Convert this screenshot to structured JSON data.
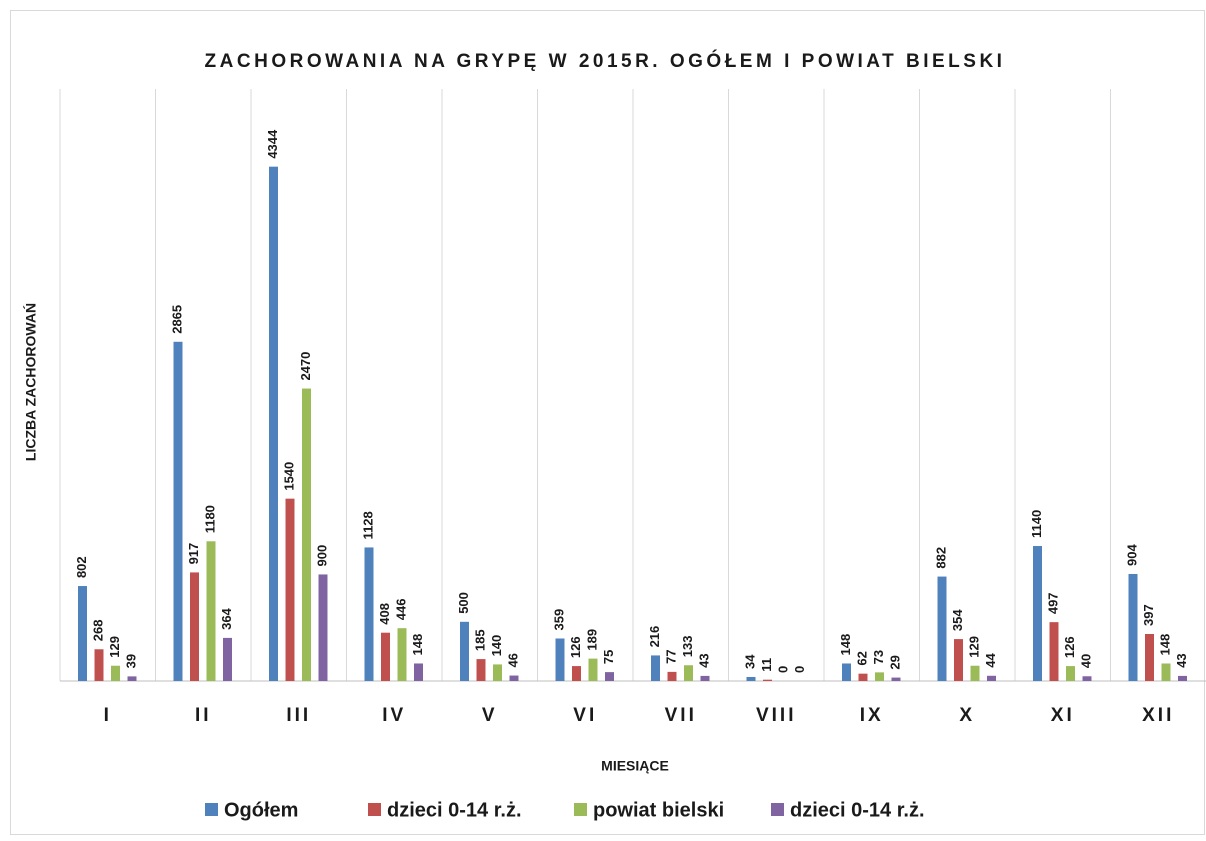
{
  "chart_data": {
    "type": "bar",
    "title": "ZACHOROWANIA NA GRYPĘ W 2015R. OGÓŁEM I POWIAT BIELSKI",
    "x_label": "MIESIĄCE",
    "y_label": "LICZBA ZACHOROWAŃ",
    "categories": [
      "I",
      "II",
      "III",
      "IV",
      "V",
      "VI",
      "VII",
      "VIII",
      "IX",
      "X",
      "XI",
      "XII"
    ],
    "series": [
      {
        "name": "Ogółem",
        "color": "#4f81bd",
        "values": [
          802,
          2865,
          4344,
          1128,
          500,
          359,
          216,
          34,
          148,
          882,
          1140,
          904
        ]
      },
      {
        "name": "dzieci 0-14 r.ż.",
        "color": "#c0504d",
        "values": [
          268,
          917,
          1540,
          408,
          185,
          126,
          77,
          11,
          62,
          354,
          497,
          397
        ]
      },
      {
        "name": "powiat bielski",
        "color": "#9bbb59",
        "values": [
          129,
          1180,
          2470,
          446,
          140,
          189,
          133,
          0,
          73,
          129,
          126,
          148
        ]
      },
      {
        "name": "dzieci 0-14 r.ż.",
        "color": "#8064a2",
        "values": [
          39,
          364,
          900,
          148,
          46,
          75,
          43,
          0,
          29,
          44,
          40,
          43
        ]
      }
    ],
    "ylim": [
      0,
      5000
    ],
    "legend": "bottom"
  }
}
